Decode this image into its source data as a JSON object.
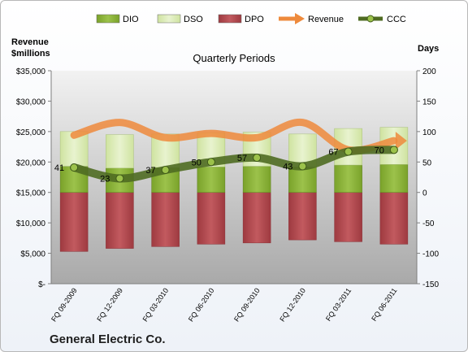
{
  "chart_data": {
    "type": "bar",
    "title": "Quarterly Periods",
    "company": "General Electric Co.",
    "left_axis_label": [
      "Revenue",
      "$millions"
    ],
    "right_axis_label": "Days",
    "categories": [
      "FQ 09-2009",
      "FQ 12-2009",
      "FQ 03-2010",
      "FQ 06-2010",
      "FQ 09-2010",
      "FQ 12-2010",
      "FQ 03-2011",
      "FQ 06-2011"
    ],
    "left_ticks": [
      "$35,000",
      "$30,000",
      "$25,000",
      "$20,000",
      "$15,000",
      "$10,000",
      "$5,000",
      "$-"
    ],
    "right_ticks": [
      "200",
      "150",
      "100",
      "50",
      "0",
      "-50",
      "-100",
      "-150"
    ],
    "left_ylim": [
      0,
      35000
    ],
    "right_ylim": [
      -150,
      200
    ],
    "legend": [
      "DIO",
      "DSO",
      "DPO",
      "Revenue",
      "CCC"
    ],
    "legend_position": "top",
    "series": [
      {
        "name": "DIO",
        "axis": "right",
        "values": [
          43,
          40,
          41,
          42,
          43,
          42,
          45,
          46
        ]
      },
      {
        "name": "DSO",
        "axis": "right",
        "values": [
          57,
          55,
          55,
          56,
          56,
          54,
          60,
          61
        ]
      },
      {
        "name": "DPO",
        "axis": "right",
        "values": [
          -97,
          -92,
          -89,
          -85,
          -83,
          -78,
          -81,
          -85
        ]
      },
      {
        "name": "Revenue",
        "axis": "left",
        "values": [
          24400,
          26500,
          24000,
          24700,
          24000,
          26500,
          22000,
          23500
        ]
      },
      {
        "name": "CCC",
        "axis": "right",
        "values": [
          41,
          23,
          37,
          50,
          57,
          43,
          67,
          70
        ],
        "labels": [
          "41",
          "23",
          "37",
          "50",
          "57",
          "43",
          "67",
          "70"
        ]
      }
    ],
    "colors": {
      "DIO": "#8db23a",
      "DSO": "#dbeab6",
      "DPO": "#b34a4f",
      "Revenue": "#ee8a3c",
      "CCC": "#4f6b22",
      "plot_bg": "#c4c4c4"
    },
    "grid": false
  }
}
